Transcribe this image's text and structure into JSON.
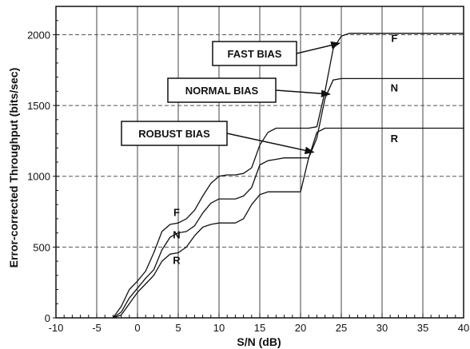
{
  "chart_data": {
    "type": "line",
    "xlabel": "S/N (dB)",
    "ylabel": "Error-corrected Throughput (bits/sec)",
    "xlim": [
      -10,
      40
    ],
    "ylim": [
      0,
      2200
    ],
    "x_ticks": [
      "-10",
      "-5",
      "0",
      "5",
      "10",
      "15",
      "20",
      "25",
      "30",
      "35",
      "40"
    ],
    "y_ticks": [
      "0",
      "500",
      "1000",
      "1500",
      "2000"
    ],
    "grid": true,
    "series": [
      {
        "name": "F",
        "points": [
          [
            -3,
            0
          ],
          [
            -2,
            80
          ],
          [
            -1,
            200
          ],
          [
            0,
            260
          ],
          [
            1,
            330
          ],
          [
            2,
            460
          ],
          [
            3,
            610
          ],
          [
            4,
            660
          ],
          [
            5,
            670
          ],
          [
            6,
            700
          ],
          [
            7,
            760
          ],
          [
            8,
            860
          ],
          [
            9,
            950
          ],
          [
            10,
            1000
          ],
          [
            11,
            1010
          ],
          [
            12,
            1010
          ],
          [
            13,
            1020
          ],
          [
            14,
            1060
          ],
          [
            15,
            1220
          ],
          [
            16,
            1310
          ],
          [
            17,
            1340
          ],
          [
            18,
            1340
          ],
          [
            19,
            1340
          ],
          [
            20,
            1340
          ],
          [
            21,
            1340
          ],
          [
            22,
            1350
          ],
          [
            23,
            1600
          ],
          [
            24,
            1900
          ],
          [
            25,
            1990
          ],
          [
            26,
            2010
          ],
          [
            30,
            2010
          ],
          [
            40,
            2010
          ]
        ]
      },
      {
        "name": "N",
        "points": [
          [
            -3,
            0
          ],
          [
            -2,
            40
          ],
          [
            -1,
            140
          ],
          [
            0,
            210
          ],
          [
            1,
            280
          ],
          [
            2,
            340
          ],
          [
            3,
            480
          ],
          [
            4,
            570
          ],
          [
            5,
            600
          ],
          [
            6,
            610
          ],
          [
            7,
            650
          ],
          [
            8,
            740
          ],
          [
            9,
            810
          ],
          [
            10,
            840
          ],
          [
            11,
            840
          ],
          [
            12,
            840
          ],
          [
            13,
            860
          ],
          [
            14,
            920
          ],
          [
            15,
            1080
          ],
          [
            16,
            1110
          ],
          [
            17,
            1120
          ],
          [
            18,
            1130
          ],
          [
            19,
            1130
          ],
          [
            20,
            1130
          ],
          [
            21,
            1130
          ],
          [
            22,
            1270
          ],
          [
            23,
            1550
          ],
          [
            24,
            1680
          ],
          [
            25,
            1690
          ],
          [
            30,
            1690
          ],
          [
            40,
            1690
          ]
        ]
      },
      {
        "name": "R",
        "points": [
          [
            -3,
            0
          ],
          [
            -2,
            20
          ],
          [
            -1,
            100
          ],
          [
            0,
            180
          ],
          [
            1,
            240
          ],
          [
            2,
            300
          ],
          [
            3,
            400
          ],
          [
            4,
            450
          ],
          [
            5,
            460
          ],
          [
            6,
            500
          ],
          [
            7,
            580
          ],
          [
            8,
            640
          ],
          [
            9,
            660
          ],
          [
            10,
            670
          ],
          [
            11,
            670
          ],
          [
            12,
            670
          ],
          [
            13,
            700
          ],
          [
            14,
            800
          ],
          [
            15,
            870
          ],
          [
            16,
            890
          ],
          [
            17,
            890
          ],
          [
            18,
            890
          ],
          [
            19,
            890
          ],
          [
            20,
            890
          ],
          [
            21,
            1130
          ],
          [
            22,
            1310
          ],
          [
            23,
            1340
          ],
          [
            24,
            1340
          ],
          [
            25,
            1340
          ],
          [
            30,
            1340
          ],
          [
            40,
            1340
          ]
        ]
      }
    ],
    "annotations": [
      {
        "text": "FAST BIAS",
        "arrow_to": [
          24.8,
          1940
        ]
      },
      {
        "text": "NORMAL BIAS",
        "arrow_to": [
          23.6,
          1580
        ]
      },
      {
        "text": "ROBUST BIAS",
        "arrow_to": [
          21.6,
          1170
        ]
      }
    ],
    "series_labels": [
      {
        "text": "F",
        "at": [
          31.5,
          1950
        ]
      },
      {
        "text": "N",
        "at": [
          31.5,
          1600
        ]
      },
      {
        "text": "R",
        "at": [
          31.5,
          1240
        ]
      },
      {
        "text": "F",
        "at": [
          4.8,
          720
        ]
      },
      {
        "text": "N",
        "at": [
          4.8,
          560
        ]
      },
      {
        "text": "R",
        "at": [
          4.8,
          380
        ]
      }
    ]
  }
}
